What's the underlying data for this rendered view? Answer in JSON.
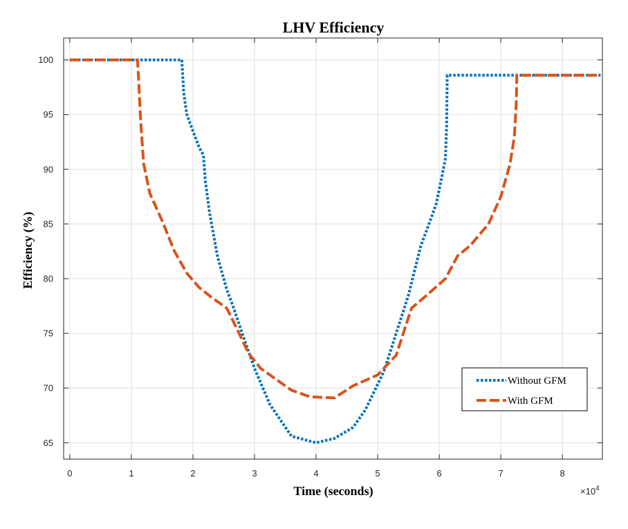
{
  "chart_data": {
    "type": "line",
    "title": "LHV Efficiency",
    "xlabel": "Time (seconds)",
    "ylabel": "Efficiency (%)",
    "x_exponent_label": "×10",
    "x_exponent_power": "4",
    "xlim": [
      -0.1,
      8.65
    ],
    "ylim": [
      63.5,
      102
    ],
    "xticks": [
      0,
      1,
      2,
      3,
      4,
      5,
      6,
      7,
      8
    ],
    "xtick_labels": [
      "0",
      "1",
      "2",
      "3",
      "4",
      "5",
      "6",
      "7",
      "8"
    ],
    "yticks": [
      65,
      70,
      75,
      80,
      85,
      90,
      95,
      100
    ],
    "ytick_labels": [
      "65",
      "70",
      "75",
      "80",
      "85",
      "90",
      "95",
      "100"
    ],
    "grid": true,
    "legend_position": "bottom-right",
    "series": [
      {
        "name": "Without GFM",
        "color": "#0072BD",
        "style": "dotted",
        "x": [
          0,
          1.82,
          1.85,
          1.9,
          2.0,
          2.1,
          2.17,
          2.2,
          2.27,
          2.4,
          2.55,
          2.65,
          2.8,
          3.0,
          3.25,
          3.6,
          4.0,
          4.3,
          4.6,
          4.8,
          5.1,
          5.3,
          5.5,
          5.7,
          5.8,
          5.95,
          6.05,
          6.1,
          6.12,
          6.13,
          6.5,
          8.62
        ],
        "y": [
          100,
          100,
          97,
          95,
          93.5,
          92,
          91.3,
          89,
          86,
          82,
          79,
          77.5,
          75,
          71.8,
          68.5,
          65.6,
          65,
          65.4,
          66.4,
          68,
          71.5,
          75,
          78.5,
          83,
          84.5,
          86.8,
          89.5,
          91,
          94,
          98.6,
          98.6,
          98.6
        ]
      },
      {
        "name": "With GFM",
        "color": "#D95319",
        "style": "dashed",
        "x": [
          0,
          1.1,
          1.12,
          1.15,
          1.2,
          1.3,
          1.5,
          1.7,
          1.9,
          2.1,
          2.3,
          2.55,
          2.75,
          2.9,
          3.1,
          3.3,
          3.6,
          3.9,
          4.3,
          4.6,
          5.0,
          5.3,
          5.55,
          5.8,
          6.1,
          6.3,
          6.5,
          6.8,
          7.0,
          7.15,
          7.22,
          7.25,
          7.26,
          8.62
        ],
        "y": [
          100,
          100,
          98,
          94.5,
          90.5,
          87.8,
          85.3,
          82.5,
          80.5,
          79.2,
          78.3,
          77.3,
          75,
          73.2,
          71.8,
          71,
          69.8,
          69.2,
          69.1,
          70.2,
          71.2,
          73,
          77.3,
          78.5,
          80,
          82.1,
          83,
          85,
          87.5,
          90.5,
          93,
          96,
          98.6,
          98.6
        ]
      }
    ]
  }
}
